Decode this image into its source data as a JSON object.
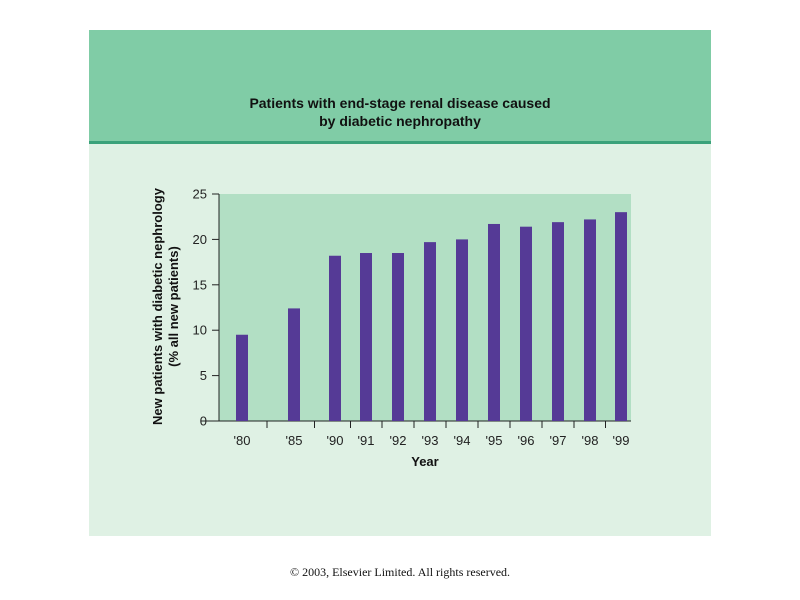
{
  "chart_data": {
    "type": "bar",
    "title_lines": [
      "Patients with end-stage renal disease caused",
      "by diabetic nephropathy"
    ],
    "xlabel": "Year",
    "ylabel_lines": [
      "New patients with diabetic nephrology",
      "(% all new patients)"
    ],
    "categories": [
      "'80",
      "'85",
      "'90",
      "'91",
      "'92",
      "'93",
      "'94",
      "'95",
      "'96",
      "'97",
      "'98",
      "'99"
    ],
    "series": [
      {
        "values": [
          9.5,
          12.4,
          18.2,
          18.5,
          18.5,
          19.7,
          20.0,
          21.7,
          21.4,
          21.9,
          22.2,
          23.0
        ]
      }
    ],
    "ylim": [
      0,
      25
    ],
    "yticks": [
      0,
      5,
      10,
      15,
      20,
      25
    ],
    "grid": false,
    "colors": {
      "bar": "#553a96",
      "plot_bg": "#b2dfc4",
      "header_bg": "#80cca6",
      "panel_bg": "#dff1e4"
    }
  },
  "footer": "© 2003, Elsevier Limited. All rights reserved."
}
